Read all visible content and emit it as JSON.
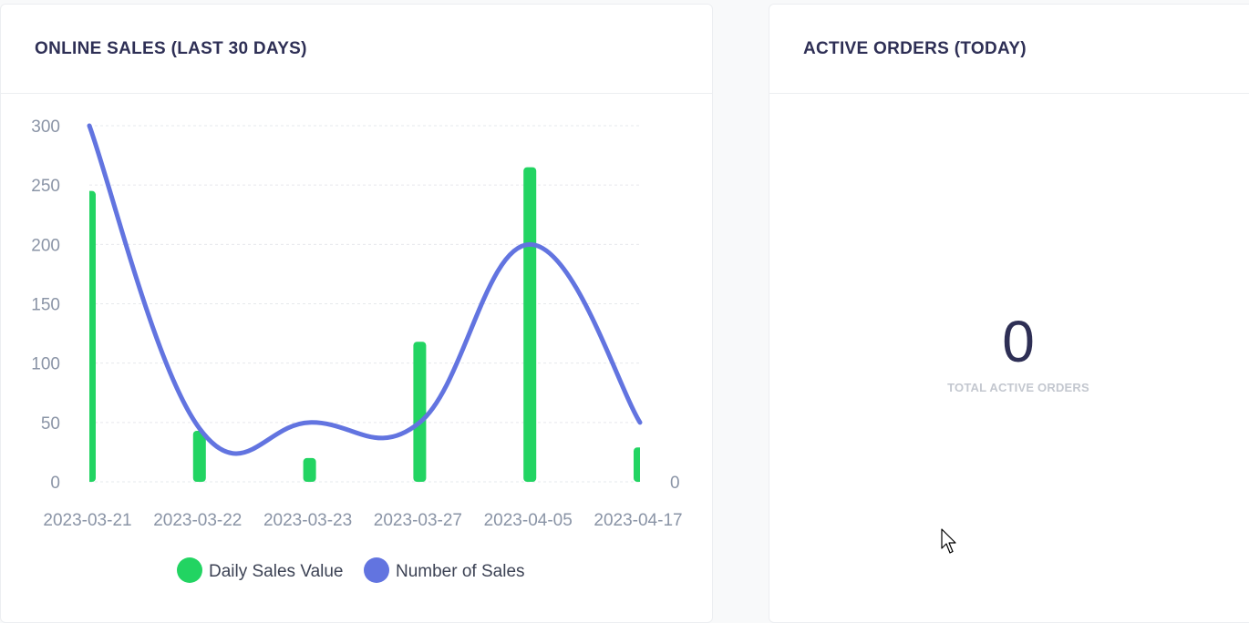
{
  "sales_card": {
    "title": "ONLINE SALES (LAST 30 DAYS)"
  },
  "orders_card": {
    "title": "ACTIVE ORDERS (TODAY)",
    "value": "0",
    "caption": "TOTAL ACTIVE ORDERS"
  },
  "colors": {
    "bar": "#22d462",
    "line": "#6274e0",
    "title": "#2e2f55",
    "grid": "#e6e8ec"
  },
  "chart_data": {
    "type": "bar",
    "categories": [
      "2023-03-21",
      "2023-03-22",
      "2023-03-23",
      "2023-03-27",
      "2023-04-05",
      "2023-04-17"
    ],
    "series": [
      {
        "name": "Daily Sales Value",
        "type": "bar",
        "axis": "right",
        "values": [
          245,
          43,
          20,
          118,
          265,
          29
        ]
      },
      {
        "name": "Number of Sales",
        "type": "line",
        "axis": "left",
        "values": [
          300,
          45,
          50,
          50,
          200,
          50
        ]
      }
    ],
    "y_left_ticks": [
      0,
      50,
      100,
      150,
      200,
      250,
      300
    ],
    "y_right_ticks": [
      0
    ],
    "ylim": [
      0,
      300
    ],
    "grid": true,
    "legend_position": "bottom-center"
  }
}
